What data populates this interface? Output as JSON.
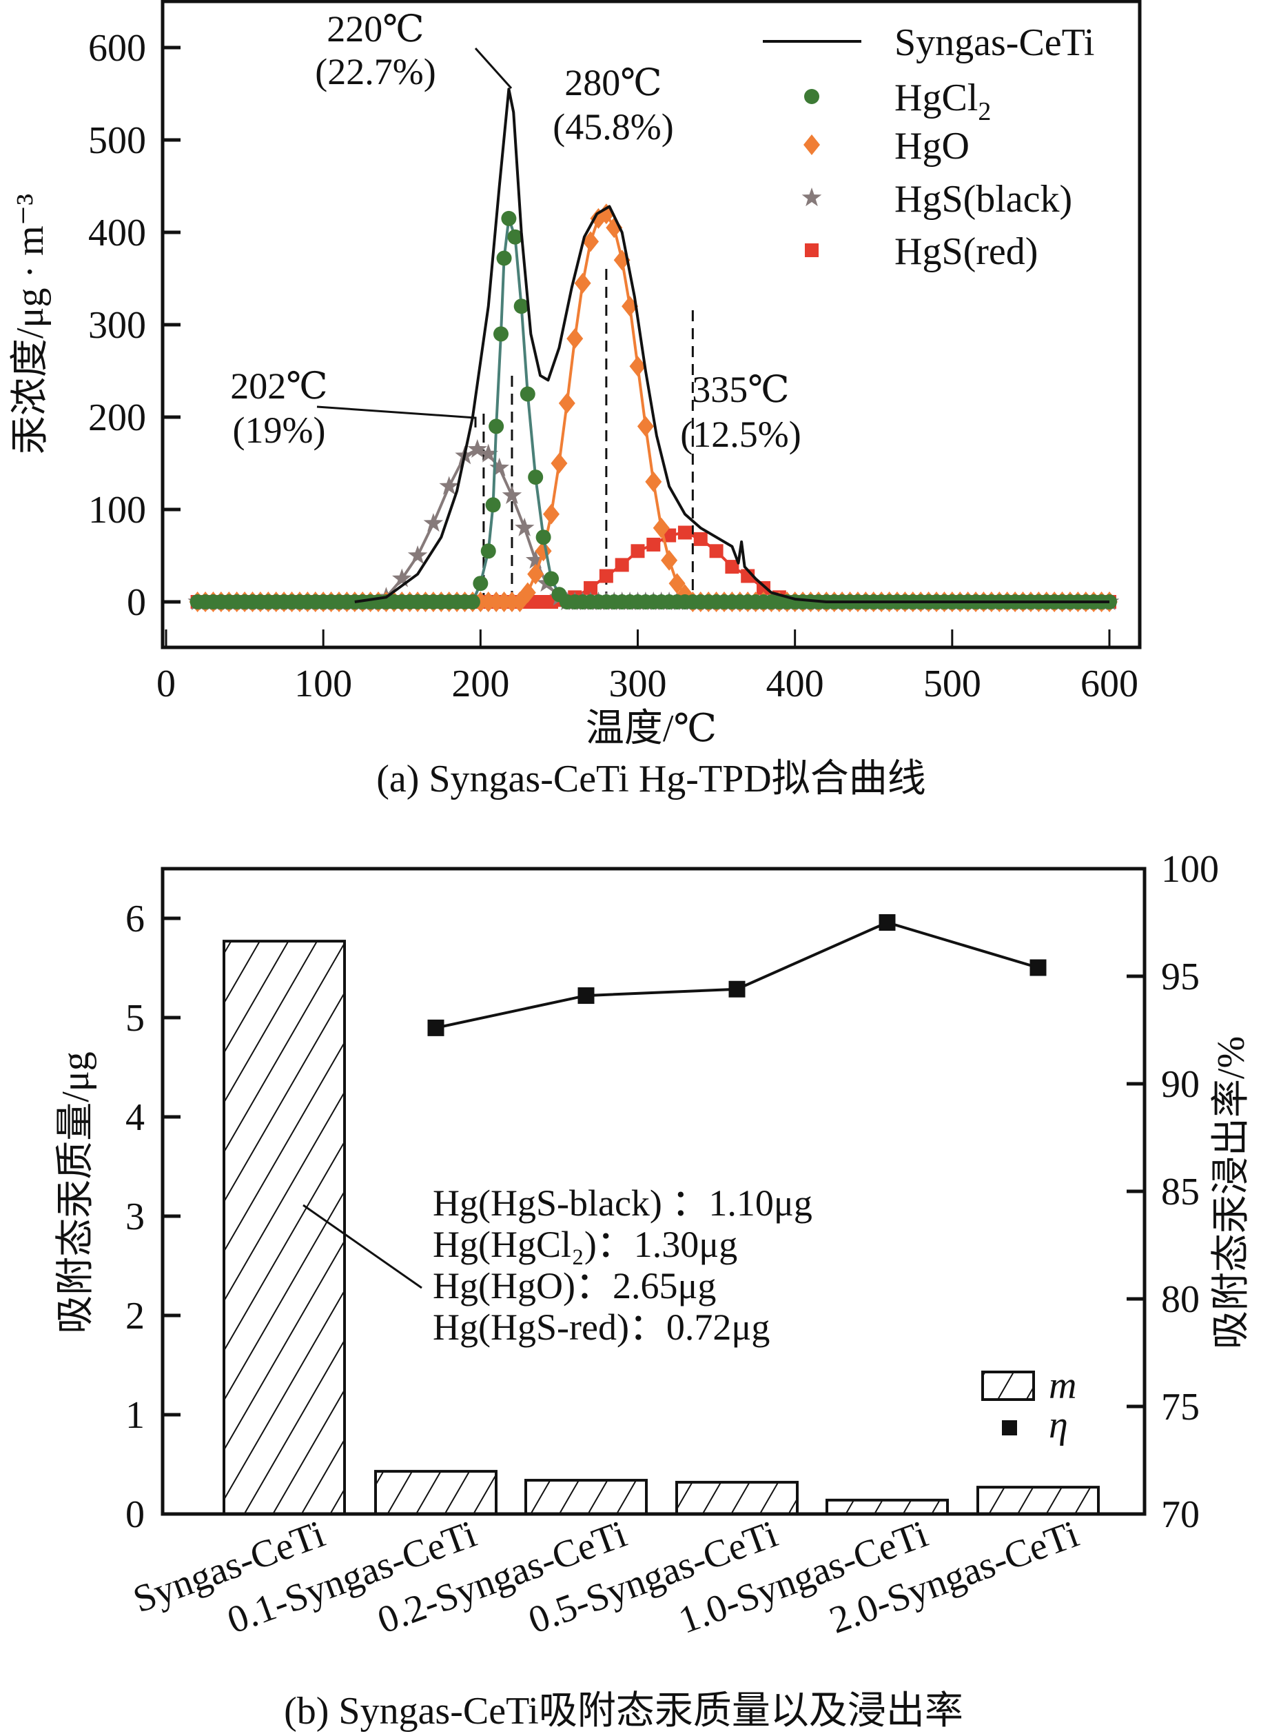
{
  "chart_data": [
    {
      "id": "a",
      "type": "line",
      "caption": "(a) Syngas-CeTi Hg-TPD拟合曲线",
      "xlabel": "温度/℃",
      "ylabel": "汞浓度/μg · m⁻³",
      "xlim": [
        0,
        600
      ],
      "ylim": [
        -50,
        650
      ],
      "xticks": [
        0,
        100,
        200,
        300,
        400,
        500,
        600
      ],
      "yticks": [
        0,
        100,
        200,
        300,
        400,
        500,
        600
      ],
      "grid": false,
      "legend_position": "top-right",
      "baseline_x": {
        "start": 20,
        "end": 600,
        "step": 5
      },
      "series": [
        {
          "name": "Syngas-CeTi",
          "kind": "line",
          "color": "#111111",
          "points": [
            [
              120,
              0
            ],
            [
              140,
              5
            ],
            [
              160,
              30
            ],
            [
              175,
              70
            ],
            [
              185,
              120
            ],
            [
              195,
              200
            ],
            [
              205,
              320
            ],
            [
              212,
              450
            ],
            [
              218,
              555
            ],
            [
              221,
              530
            ],
            [
              226,
              400
            ],
            [
              232,
              290
            ],
            [
              238,
              245
            ],
            [
              243,
              240
            ],
            [
              250,
              275
            ],
            [
              258,
              340
            ],
            [
              266,
              395
            ],
            [
              274,
              420
            ],
            [
              282,
              428
            ],
            [
              290,
              400
            ],
            [
              298,
              330
            ],
            [
              305,
              250
            ],
            [
              312,
              180
            ],
            [
              320,
              125
            ],
            [
              330,
              95
            ],
            [
              340,
              80
            ],
            [
              350,
              70
            ],
            [
              360,
              60
            ],
            [
              364,
              42
            ],
            [
              366,
              65
            ],
            [
              368,
              38
            ],
            [
              375,
              25
            ],
            [
              385,
              10
            ],
            [
              400,
              3
            ],
            [
              420,
              0
            ]
          ]
        },
        {
          "name": "HgCl2",
          "kind": "marker-line",
          "marker": "circle",
          "color": "#3d7a35",
          "line_color": "#4a8078",
          "points": [
            [
              200,
              20
            ],
            [
              205,
              55
            ],
            [
              208,
              105
            ],
            [
              210,
              190
            ],
            [
              213,
              290
            ],
            [
              215,
              372
            ],
            [
              218,
              415
            ],
            [
              222,
              395
            ],
            [
              226,
              320
            ],
            [
              230,
              225
            ],
            [
              235,
              135
            ],
            [
              240,
              70
            ],
            [
              245,
              25
            ],
            [
              250,
              8
            ]
          ]
        },
        {
          "name": "HgO",
          "kind": "marker-line",
          "marker": "diamond",
          "color": "#f07e35",
          "line_color": "#f07e35",
          "points": [
            [
              230,
              10
            ],
            [
              235,
              30
            ],
            [
              240,
              55
            ],
            [
              245,
              95
            ],
            [
              250,
              150
            ],
            [
              255,
              215
            ],
            [
              260,
              285
            ],
            [
              265,
              345
            ],
            [
              270,
              390
            ],
            [
              275,
              415
            ],
            [
              280,
              420
            ],
            [
              285,
              405
            ],
            [
              290,
              370
            ],
            [
              295,
              320
            ],
            [
              300,
              255
            ],
            [
              305,
              190
            ],
            [
              310,
              130
            ],
            [
              315,
              80
            ],
            [
              320,
              45
            ],
            [
              325,
              20
            ],
            [
              330,
              8
            ]
          ]
        },
        {
          "name": "HgS(black)",
          "kind": "marker-line",
          "marker": "star",
          "color": "#867a7a",
          "line_color": "#867a7a",
          "points": [
            [
              140,
              5
            ],
            [
              150,
              25
            ],
            [
              160,
              50
            ],
            [
              170,
              85
            ],
            [
              180,
              125
            ],
            [
              190,
              158
            ],
            [
              198,
              165
            ],
            [
              205,
              160
            ],
            [
              212,
              145
            ],
            [
              220,
              115
            ],
            [
              228,
              80
            ],
            [
              235,
              45
            ],
            [
              242,
              20
            ],
            [
              250,
              5
            ]
          ]
        },
        {
          "name": "HgS(red)",
          "kind": "marker-line",
          "marker": "square",
          "color": "#e53c2e",
          "line_color": "#e53c2e",
          "points": [
            [
              250,
              2
            ],
            [
              260,
              5
            ],
            [
              270,
              15
            ],
            [
              280,
              28
            ],
            [
              290,
              40
            ],
            [
              300,
              55
            ],
            [
              310,
              62
            ],
            [
              320,
              72
            ],
            [
              330,
              75
            ],
            [
              340,
              68
            ],
            [
              350,
              55
            ],
            [
              360,
              38
            ],
            [
              370,
              28
            ],
            [
              380,
              15
            ],
            [
              390,
              5
            ]
          ]
        }
      ],
      "annotations": [
        {
          "line1": "220℃",
          "line2": "(22.7%)",
          "x": 220,
          "peak": 555
        },
        {
          "line1": "280℃",
          "line2": "(45.8%)",
          "x": 280,
          "peak": 428
        },
        {
          "line1": "202℃",
          "line2": "(19%)",
          "x": 202,
          "peak": 200
        },
        {
          "line1": "335℃",
          "line2": "(12.5%)",
          "x": 335,
          "peak": 130
        }
      ],
      "dashed_lines_x": [
        202,
        220,
        280,
        335
      ]
    },
    {
      "id": "b",
      "type": "bar",
      "caption": "(b) Syngas-CeTi吸附态汞质量以及浸出率",
      "ylabel": "吸附态汞质量/μg",
      "y2label": "吸附态汞浸出率/%",
      "categories": [
        "Syngas-CeTi",
        "0.1-Syngas-CeTi",
        "0.2-Syngas-CeTi",
        "0.5-Syngas-CeTi",
        "1.0-Syngas-CeTi",
        "2.0-Syngas-CeTi"
      ],
      "ylim": [
        0,
        6.5
      ],
      "y2lim": [
        70,
        100
      ],
      "yticks": [
        0,
        1,
        2,
        3,
        4,
        5,
        6
      ],
      "y2ticks": [
        70,
        75,
        80,
        85,
        90,
        95,
        100
      ],
      "grid": false,
      "legend_position": "bottom-right",
      "series": [
        {
          "name": "m",
          "kind": "bar",
          "pattern": "hatch",
          "values": [
            5.77,
            0.43,
            0.34,
            0.32,
            0.14,
            0.27
          ]
        },
        {
          "name": "η",
          "kind": "line-marker",
          "axis": "right",
          "marker": "square",
          "values": [
            null,
            92.6,
            94.1,
            94.4,
            97.5,
            95.4
          ]
        }
      ],
      "annotation_lines": [
        "Hg(HgS-black) ：1.10μg",
        "Hg(HgCl₂)：1.30μg",
        "Hg(HgO)：2.65μg",
        "Hg(HgS-red)：0.72μg"
      ]
    }
  ]
}
